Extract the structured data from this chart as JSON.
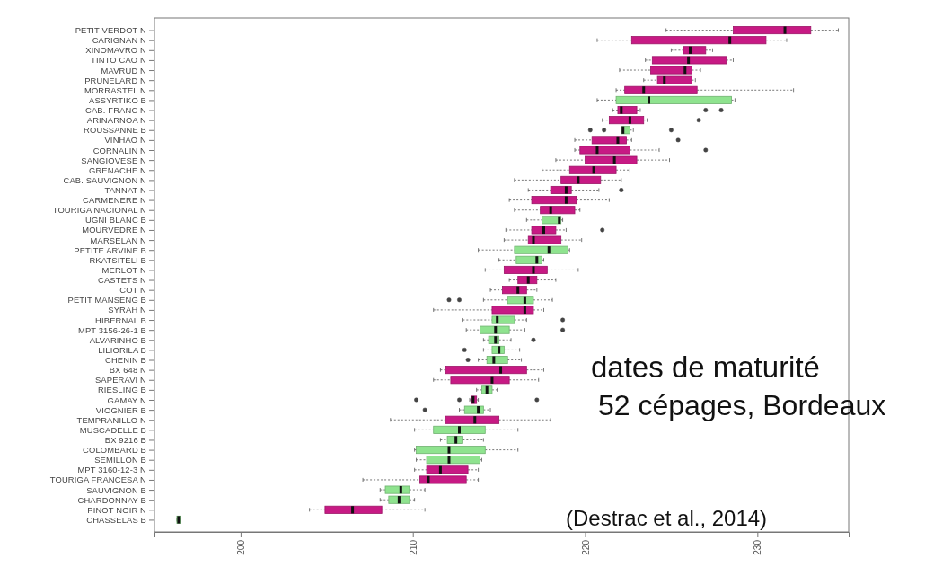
{
  "chart_data": {
    "type": "box",
    "orientation": "horizontal",
    "categories": [
      "PETIT VERDOT N",
      "CARIGNAN N",
      "XINOMAVRO N",
      "TINTO CAO N",
      "MAVRUD N",
      "PRUNELARD N",
      "MORRASTEL N",
      "ASSYRTIKO B",
      "CAB. FRANC N",
      "ARINARNOA N",
      "ROUSSANNE B",
      "VINHAO N",
      "CORNALIN N",
      "SANGIOVESE N",
      "GRENACHE N",
      "CAB. SAUVIGNON N",
      "TANNAT N",
      "CARMENERE N",
      "TOURIGA NACIONAL N",
      "UGNI BLANC B",
      "MOURVEDRE N",
      "MARSELAN N",
      "PETITE ARVINE B",
      "RKATSITELI B",
      "MERLOT N",
      "CASTETS N",
      "COT N",
      "PETIT MANSENG B",
      "SYRAH N",
      "HIBERNAL B",
      "MPT 3156-26-1 B",
      "ALVARINHO B",
      "LILIORILA B",
      "CHENIN B",
      "BX 648 N",
      "SAPERAVI N",
      "RIESLING B",
      "GAMAY N",
      "VIOGNIER B",
      "TEMPRANILLO N",
      "MUSCADELLE B",
      "BX 9216 B",
      "COLOMBARD B",
      "SEMILLON B",
      "MPT 3160-12-3 N",
      "TOURIGA FRANCESA N",
      "SAUVIGNON B",
      "CHARDONNAY B",
      "PINOT NOIR N",
      "CHASSELAS B"
    ],
    "boxes": [
      {
        "low": 224.7,
        "q1": 228.6,
        "median": 231.6,
        "q3": 233.1,
        "high": 234.7
      },
      {
        "low": 220.7,
        "q1": 222.7,
        "median": 228.4,
        "q3": 230.5,
        "high": 231.7
      },
      {
        "low": 225.0,
        "q1": 225.7,
        "median": 226.1,
        "q3": 227.0,
        "high": 227.4
      },
      {
        "low": 223.5,
        "q1": 223.9,
        "median": 226.0,
        "q3": 228.2,
        "high": 228.6
      },
      {
        "low": 222.0,
        "q1": 223.8,
        "median": 225.8,
        "q3": 226.2,
        "high": 226.7
      },
      {
        "low": 223.4,
        "q1": 224.2,
        "median": 224.6,
        "q3": 226.2,
        "high": 226.4
      },
      {
        "low": 221.8,
        "q1": 222.3,
        "median": 223.4,
        "q3": 226.5,
        "high": 232.1
      },
      {
        "low": 220.7,
        "q1": 221.8,
        "median": 223.7,
        "q3": 228.5,
        "high": 228.7
      },
      {
        "low": 221.6,
        "q1": 221.9,
        "median": 222.1,
        "q3": 223.0,
        "high": 223.2,
        "outliers": [
          227.0,
          227.9
        ]
      },
      {
        "low": 221.0,
        "q1": 221.4,
        "median": 222.6,
        "q3": 223.4,
        "high": 223.6,
        "outliers": [
          226.6
        ]
      },
      {
        "low": 222.1,
        "q1": 222.1,
        "median": 222.2,
        "q3": 222.6,
        "high": 222.8,
        "outliers": [
          220.3,
          221.1,
          225.0
        ]
      },
      {
        "low": 219.4,
        "q1": 220.4,
        "median": 221.9,
        "q3": 222.4,
        "high": 222.7,
        "outliers": [
          225.4
        ]
      },
      {
        "low": 219.4,
        "q1": 219.7,
        "median": 220.7,
        "q3": 222.6,
        "high": 224.3,
        "outliers": [
          227.0
        ]
      },
      {
        "low": 218.3,
        "q1": 220.0,
        "median": 221.7,
        "q3": 223.0,
        "high": 224.9
      },
      {
        "low": 217.5,
        "q1": 219.1,
        "median": 220.5,
        "q3": 221.8,
        "high": 222.6
      },
      {
        "low": 215.9,
        "q1": 218.6,
        "median": 219.6,
        "q3": 220.9,
        "high": 222.1
      },
      {
        "low": 216.7,
        "q1": 218.0,
        "median": 218.9,
        "q3": 219.2,
        "high": 220.8,
        "outliers": [
          222.1
        ]
      },
      {
        "low": 215.6,
        "q1": 216.9,
        "median": 218.9,
        "q3": 219.5,
        "high": 221.4
      },
      {
        "low": 215.9,
        "q1": 217.4,
        "median": 218.0,
        "q3": 219.4,
        "high": 219.7
      },
      {
        "low": 216.6,
        "q1": 217.5,
        "median": 218.5,
        "q3": 218.6,
        "high": 218.7
      },
      {
        "low": 215.4,
        "q1": 216.9,
        "median": 217.6,
        "q3": 218.3,
        "high": 218.9,
        "outliers": [
          221.0
        ]
      },
      {
        "low": 215.3,
        "q1": 216.7,
        "median": 217.0,
        "q3": 218.6,
        "high": 219.8
      },
      {
        "low": 213.8,
        "q1": 215.9,
        "median": 217.9,
        "q3": 219.0,
        "high": 219.1
      },
      {
        "low": 215.0,
        "q1": 216.0,
        "median": 217.2,
        "q3": 217.5,
        "high": 217.6
      },
      {
        "low": 214.2,
        "q1": 215.3,
        "median": 217.0,
        "q3": 217.8,
        "high": 219.6
      },
      {
        "low": 215.6,
        "q1": 216.1,
        "median": 216.7,
        "q3": 217.2,
        "high": 218.3
      },
      {
        "low": 214.5,
        "q1": 215.2,
        "median": 216.1,
        "q3": 216.6,
        "high": 217.2
      },
      {
        "low": 214.1,
        "q1": 215.5,
        "median": 216.5,
        "q3": 217.0,
        "high": 218.1,
        "outliers": [
          212.1,
          212.7
        ]
      },
      {
        "low": 211.2,
        "q1": 214.6,
        "median": 216.5,
        "q3": 217.0,
        "high": 217.6
      },
      {
        "low": 212.9,
        "q1": 214.6,
        "median": 214.9,
        "q3": 215.9,
        "high": 216.6,
        "outliers": [
          218.7
        ]
      },
      {
        "low": 213.1,
        "q1": 213.9,
        "median": 214.8,
        "q3": 215.6,
        "high": 216.5,
        "outliers": [
          218.7
        ]
      },
      {
        "low": 214.1,
        "q1": 214.4,
        "median": 214.8,
        "q3": 215.0,
        "high": 215.7,
        "outliers": [
          217.0
        ]
      },
      {
        "low": 214.1,
        "q1": 214.6,
        "median": 215.0,
        "q3": 215.3,
        "high": 216.2,
        "outliers": [
          213.0
        ]
      },
      {
        "low": 213.8,
        "q1": 214.3,
        "median": 214.7,
        "q3": 215.5,
        "high": 216.3,
        "outliers": [
          213.2
        ]
      },
      {
        "low": 211.6,
        "q1": 211.9,
        "median": 215.1,
        "q3": 216.6,
        "high": 217.6
      },
      {
        "low": 211.2,
        "q1": 212.2,
        "median": 214.6,
        "q3": 215.6,
        "high": 217.3
      },
      {
        "low": 213.7,
        "q1": 214.0,
        "median": 214.3,
        "q3": 214.6,
        "high": 214.9
      },
      {
        "low": 213.3,
        "q1": 213.4,
        "median": 213.5,
        "q3": 213.7,
        "high": 213.8,
        "outliers": [
          210.2,
          212.7,
          217.2
        ]
      },
      {
        "low": 212.7,
        "q1": 213.0,
        "median": 213.8,
        "q3": 214.1,
        "high": 214.5,
        "outliers": [
          210.7
        ]
      },
      {
        "low": 208.7,
        "q1": 211.9,
        "median": 213.6,
        "q3": 215.0,
        "high": 218.0
      },
      {
        "low": 210.1,
        "q1": 211.2,
        "median": 212.7,
        "q3": 214.2,
        "high": 216.1
      },
      {
        "low": 211.6,
        "q1": 212.0,
        "median": 212.5,
        "q3": 212.9,
        "high": 214.1
      },
      {
        "low": 210.1,
        "q1": 210.2,
        "median": 212.1,
        "q3": 214.2,
        "high": 216.1
      },
      {
        "low": 210.2,
        "q1": 210.8,
        "median": 212.1,
        "q3": 213.9,
        "high": 214.0
      },
      {
        "low": 210.1,
        "q1": 210.8,
        "median": 211.6,
        "q3": 213.2,
        "high": 213.8
      },
      {
        "low": 207.1,
        "q1": 210.4,
        "median": 210.9,
        "q3": 213.1,
        "high": 213.8
      },
      {
        "low": 208.1,
        "q1": 208.4,
        "median": 209.3,
        "q3": 209.8,
        "high": 210.7
      },
      {
        "low": 208.1,
        "q1": 208.6,
        "median": 209.2,
        "q3": 209.8,
        "high": 210.1
      },
      {
        "low": 204.0,
        "q1": 204.9,
        "median": 206.5,
        "q3": 208.2,
        "high": 210.7
      },
      {
        "low": 196.3,
        "q1": 196.3,
        "median": 196.4,
        "q3": 196.5,
        "high": 196.5
      }
    ],
    "colors": [
      "#c71a84",
      "#c71a84",
      "#c71a84",
      "#c71a84",
      "#c71a84",
      "#c71a84",
      "#c71a84",
      "#8fe38f",
      "#c71a84",
      "#c71a84",
      "#8fe38f",
      "#c71a84",
      "#c71a84",
      "#c71a84",
      "#c71a84",
      "#c71a84",
      "#c71a84",
      "#c71a84",
      "#c71a84",
      "#8fe38f",
      "#c71a84",
      "#c71a84",
      "#8fe38f",
      "#8fe38f",
      "#c71a84",
      "#c71a84",
      "#c71a84",
      "#8fe38f",
      "#c71a84",
      "#8fe38f",
      "#8fe38f",
      "#8fe38f",
      "#8fe38f",
      "#8fe38f",
      "#c71a84",
      "#c71a84",
      "#8fe38f",
      "#c71a84",
      "#8fe38f",
      "#c71a84",
      "#8fe38f",
      "#8fe38f",
      "#8fe38f",
      "#8fe38f",
      "#c71a84",
      "#c71a84",
      "#8fe38f",
      "#8fe38f",
      "#c71a84",
      "#8fe38f"
    ],
    "xlim": [
      195,
      235.3
    ],
    "xticks": [
      200,
      210,
      220,
      230
    ],
    "annotations": [
      "dates de maturité",
      "52 cépages, Bordeaux",
      "(Destrac et al., 2014)"
    ]
  }
}
